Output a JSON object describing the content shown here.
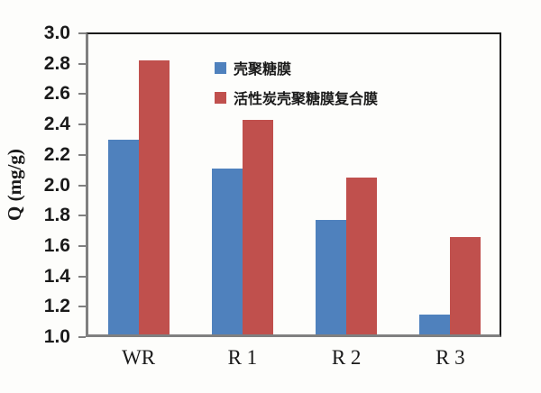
{
  "chart_data": {
    "type": "bar",
    "categories": [
      "WR",
      "R 1",
      "R 2",
      "R 3"
    ],
    "series": [
      {
        "name": "壳聚糖膜",
        "color": "#4F81BD",
        "values": [
          2.3,
          2.11,
          1.77,
          1.15
        ]
      },
      {
        "name": "活性炭壳聚糖膜复合膜",
        "color": "#C0504D",
        "values": [
          2.82,
          2.43,
          2.05,
          1.66
        ]
      }
    ],
    "title": "",
    "xlabel": "",
    "ylabel": "Q (mg/g)",
    "ylim": [
      1.0,
      3.0
    ],
    "ytick_step": 0.2,
    "ytick_labels": [
      "3.0",
      "2.8",
      "2.6",
      "2.4",
      "2.2",
      "2.0",
      "1.8",
      "1.6",
      "1.4",
      "1.2",
      "1.0"
    ],
    "grid": false,
    "legend_position": "inside-top-center"
  },
  "colors": {
    "series1_blue": "#4F81BD",
    "series2_red": "#C0504D",
    "axis_gray": "#808080",
    "border_black": "#1a1a1a",
    "background": "#fdfdfb",
    "text": "#1a1a1a"
  }
}
